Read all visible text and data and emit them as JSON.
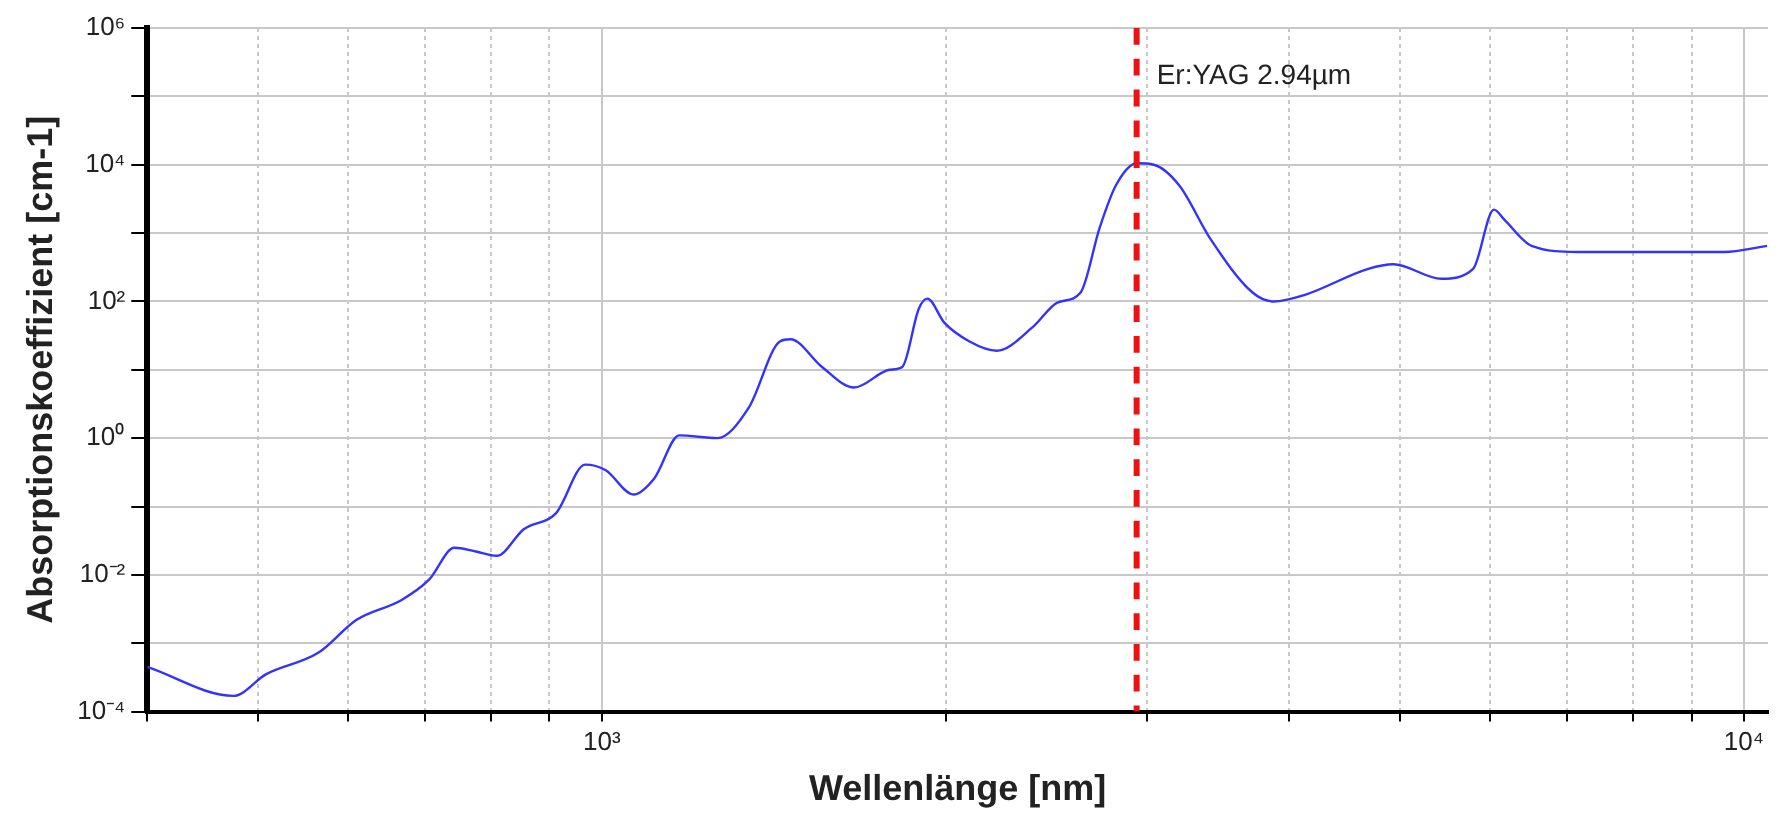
{
  "chart_data": {
    "type": "line",
    "xlabel": "Wellenlänge [nm]",
    "ylabel": "Absorptionskoeffizient [cm-1]",
    "x": [
      400,
      476,
      508,
      565,
      610,
      668,
      706,
      743,
      776,
      809,
      855,
      912,
      967,
      1008,
      1066,
      1112,
      1169,
      1262,
      1345,
      1432,
      1463,
      1559,
      1663,
      1787,
      1833,
      1895,
      1928,
      1995,
      2099,
      2218,
      2384,
      2506,
      2626,
      2729,
      2820,
      2942,
      3044,
      3203,
      3415,
      3714,
      3874,
      4128,
      4690,
      4932,
      5435,
      5794,
      6042,
      6170,
      6520,
      7155,
      9610,
      10480
    ],
    "series": [
      {
        "color": "#3333ff",
        "values": [
          0.00045,
          0.00017,
          0.00035,
          0.00073,
          0.0022,
          0.0043,
          0.0085,
          0.025,
          0.022,
          0.019,
          0.047,
          0.08,
          0.41,
          0.34,
          0.15,
          0.26,
          1.1,
          1.0,
          2.8,
          26,
          28,
          11,
          5.5,
          10,
          11,
          78,
          110,
          49,
          26,
          19,
          42,
          96,
          135,
          1200,
          5000,
          10500,
          10000,
          5000,
          800,
          135,
          100,
          125,
          300,
          350,
          215,
          300,
          2200,
          1570,
          650,
          530,
          530,
          650
        ]
      }
    ],
    "log": "xy",
    "xlim": [
      400,
      10500
    ],
    "ylim": [
      0.0001,
      1000000
    ],
    "xticks": [
      {
        "value": 400,
        "label": null
      },
      {
        "value": 500,
        "label": null
      },
      {
        "value": 600,
        "label": null
      },
      {
        "value": 700,
        "label": null
      },
      {
        "value": 800,
        "label": null
      },
      {
        "value": 900,
        "label": null
      },
      {
        "value": 1000,
        "label": "10³"
      },
      {
        "value": 2000,
        "label": null
      },
      {
        "value": 3000,
        "label": null
      },
      {
        "value": 4000,
        "label": null
      },
      {
        "value": 5000,
        "label": null
      },
      {
        "value": 6000,
        "label": null
      },
      {
        "value": 7000,
        "label": null
      },
      {
        "value": 8000,
        "label": null
      },
      {
        "value": 9000,
        "label": null
      },
      {
        "value": 10000,
        "label": "10⁴"
      }
    ],
    "yticks": [
      {
        "value": 0.0001,
        "label": "10⁻⁴"
      },
      {
        "value": 0.001,
        "label": null
      },
      {
        "value": 0.01,
        "label": "10⁻²"
      },
      {
        "value": 0.1,
        "label": null
      },
      {
        "value": 1,
        "label": "10⁰"
      },
      {
        "value": 10,
        "label": null
      },
      {
        "value": 100,
        "label": "10²"
      },
      {
        "value": 1000,
        "label": null
      },
      {
        "value": 10000,
        "label": "10⁴"
      },
      {
        "value": 100000,
        "label": null
      },
      {
        "value": 1000000,
        "label": "10⁶"
      }
    ],
    "ref_lines": [
      {
        "axis": "x",
        "value": 2940,
        "label": "Er:YAG 2.94µm",
        "color": "#ee1111",
        "line_style": "dashed"
      }
    ],
    "grid": true,
    "legend": false,
    "marker": "none",
    "line_style": "solid"
  }
}
